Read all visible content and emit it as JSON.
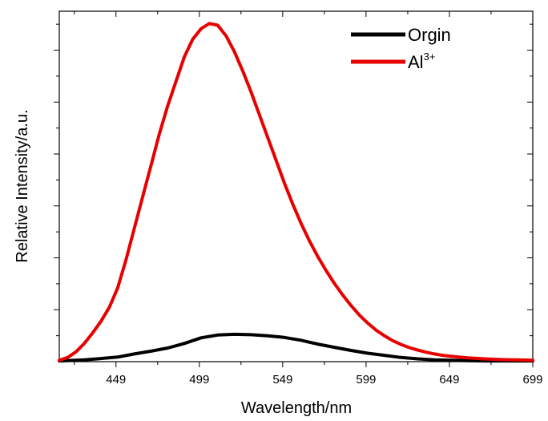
{
  "chart_data": {
    "type": "line",
    "title": "",
    "xlabel": "Wavelength/nm",
    "ylabel": "Relative Intensity/a.u.",
    "xlim": [
      415,
      699
    ],
    "ylim": [
      0,
      100
    ],
    "xticks": [
      449,
      499,
      549,
      599,
      649,
      699
    ],
    "yticks_labeled": false,
    "grid": false,
    "legend_position": "top-right",
    "series": [
      {
        "name": "Orgin",
        "color": "#000000",
        "x": [
          415,
          430,
          440,
          450,
          460,
          470,
          480,
          490,
          500,
          510,
          520,
          530,
          540,
          550,
          560,
          570,
          580,
          590,
          600,
          610,
          620,
          630,
          640,
          650,
          660,
          670,
          680,
          690,
          699
        ],
        "y": [
          0.2,
          0.5,
          0.9,
          1.3,
          2.2,
          3.0,
          3.9,
          5.2,
          6.8,
          7.6,
          7.8,
          7.7,
          7.4,
          6.9,
          6.1,
          5.0,
          4.1,
          3.2,
          2.4,
          1.8,
          1.2,
          0.8,
          0.5,
          0.4,
          0.3,
          0.2,
          0.2,
          0.2,
          0.2
        ]
      },
      {
        "name": "Al3+",
        "name_base": "Al",
        "name_sup": "3+",
        "color": "#e80000",
        "x": [
          415,
          420,
          425,
          430,
          435,
          440,
          445,
          450,
          455,
          460,
          465,
          470,
          475,
          480,
          485,
          490,
          495,
          500,
          505,
          510,
          515,
          520,
          525,
          530,
          535,
          540,
          545,
          550,
          555,
          560,
          565,
          570,
          575,
          580,
          585,
          590,
          595,
          600,
          605,
          610,
          615,
          620,
          625,
          630,
          635,
          640,
          645,
          650,
          660,
          670,
          680,
          690,
          699
        ],
        "y": [
          0.4,
          1.2,
          2.8,
          5.2,
          8.2,
          11.5,
          15.5,
          21,
          29,
          38,
          47,
          56,
          65,
          73,
          80,
          87,
          92,
          95,
          96.5,
          96,
          93,
          88.5,
          83,
          77,
          70.5,
          64,
          57.5,
          51,
          45,
          39.5,
          34.5,
          30,
          26,
          22.3,
          19,
          16,
          13.3,
          11,
          9,
          7.4,
          6,
          4.9,
          4,
          3.3,
          2.7,
          2.2,
          1.8,
          1.5,
          1.1,
          0.8,
          0.6,
          0.5,
          0.4
        ]
      }
    ]
  }
}
